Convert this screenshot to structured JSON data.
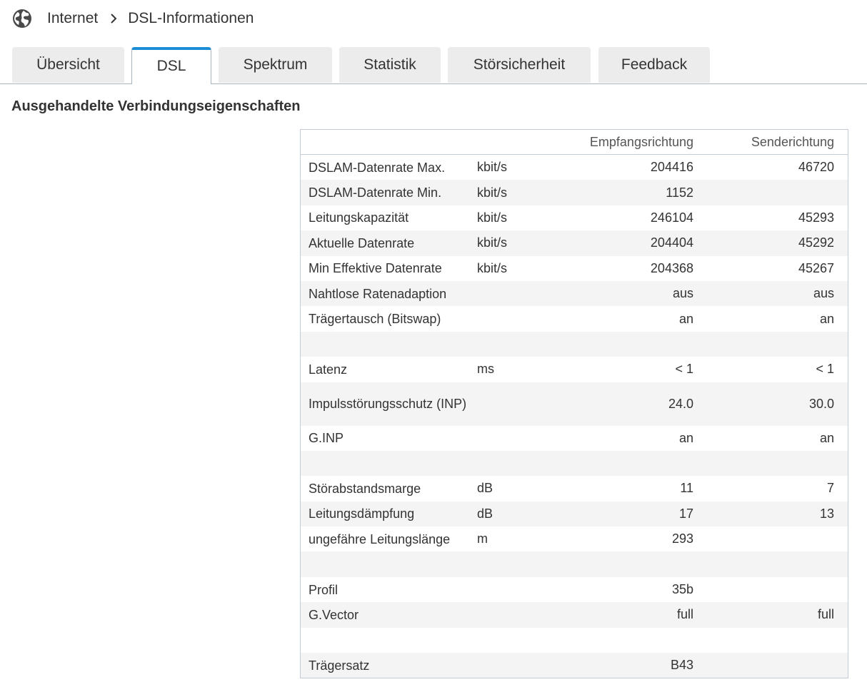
{
  "breadcrumb": {
    "icon": "globe-icon",
    "parent": "Internet",
    "current": "DSL-Informationen"
  },
  "tabs": [
    {
      "label": "Übersicht",
      "active": false
    },
    {
      "label": "DSL",
      "active": true
    },
    {
      "label": "Spektrum",
      "active": false
    },
    {
      "label": "Statistik",
      "active": false
    },
    {
      "label": "Störsicherheit",
      "active": false
    },
    {
      "label": "Feedback",
      "active": false
    }
  ],
  "section_title": "Ausgehandelte Verbindungseigenschaften",
  "table": {
    "headers": {
      "label": "",
      "unit": "",
      "down": "Empfangsrichtung",
      "up": "Senderichtung"
    },
    "rows": [
      {
        "label": "DSLAM-Datenrate Max.",
        "unit": "kbit/s",
        "down": "204416",
        "up": "46720"
      },
      {
        "label": "DSLAM-Datenrate Min.",
        "unit": "kbit/s",
        "down": "1152",
        "up": ""
      },
      {
        "label": "Leitungskapazität",
        "unit": "kbit/s",
        "down": "246104",
        "up": "45293"
      },
      {
        "label": "Aktuelle Datenrate",
        "unit": "kbit/s",
        "down": "204404",
        "up": "45292"
      },
      {
        "label": "Min Effektive Datenrate",
        "unit": "kbit/s",
        "down": "204368",
        "up": "45267"
      },
      {
        "label": "Nahtlose Ratenadaption",
        "unit": "",
        "down": "aus",
        "up": "aus"
      },
      {
        "label": "Trägertausch (Bitswap)",
        "unit": "",
        "down": "an",
        "up": "an"
      },
      {
        "label": "",
        "unit": "",
        "down": "",
        "up": ""
      },
      {
        "label": "Latenz",
        "unit": "ms",
        "down": "< 1",
        "up": "< 1"
      },
      {
        "label": "Impulsstörungsschutz (INP)",
        "unit": "",
        "down": "24.0",
        "up": "30.0"
      },
      {
        "label": "G.INP",
        "unit": "",
        "down": "an",
        "up": "an"
      },
      {
        "label": "",
        "unit": "",
        "down": "",
        "up": ""
      },
      {
        "label": "Störabstandsmarge",
        "unit": "dB",
        "down": "11",
        "up": "7"
      },
      {
        "label": "Leitungsdämpfung",
        "unit": "dB",
        "down": "17",
        "up": "13"
      },
      {
        "label": "ungefähre Leitungslänge",
        "unit": "m",
        "down": "293",
        "up": ""
      },
      {
        "label": "",
        "unit": "",
        "down": "",
        "up": ""
      },
      {
        "label": "Profil",
        "unit": "",
        "down": "35b",
        "up": ""
      },
      {
        "label": "G.Vector",
        "unit": "",
        "down": "full",
        "up": "full"
      },
      {
        "label": "",
        "unit": "",
        "down": "",
        "up": ""
      },
      {
        "label": "Trägersatz",
        "unit": "",
        "down": "B43",
        "up": ""
      }
    ]
  },
  "colors": {
    "accent": "#1a8dd6",
    "tab_bg": "#ececec",
    "row_alt": "#f4f4f4",
    "border": "#c3ccd4"
  }
}
